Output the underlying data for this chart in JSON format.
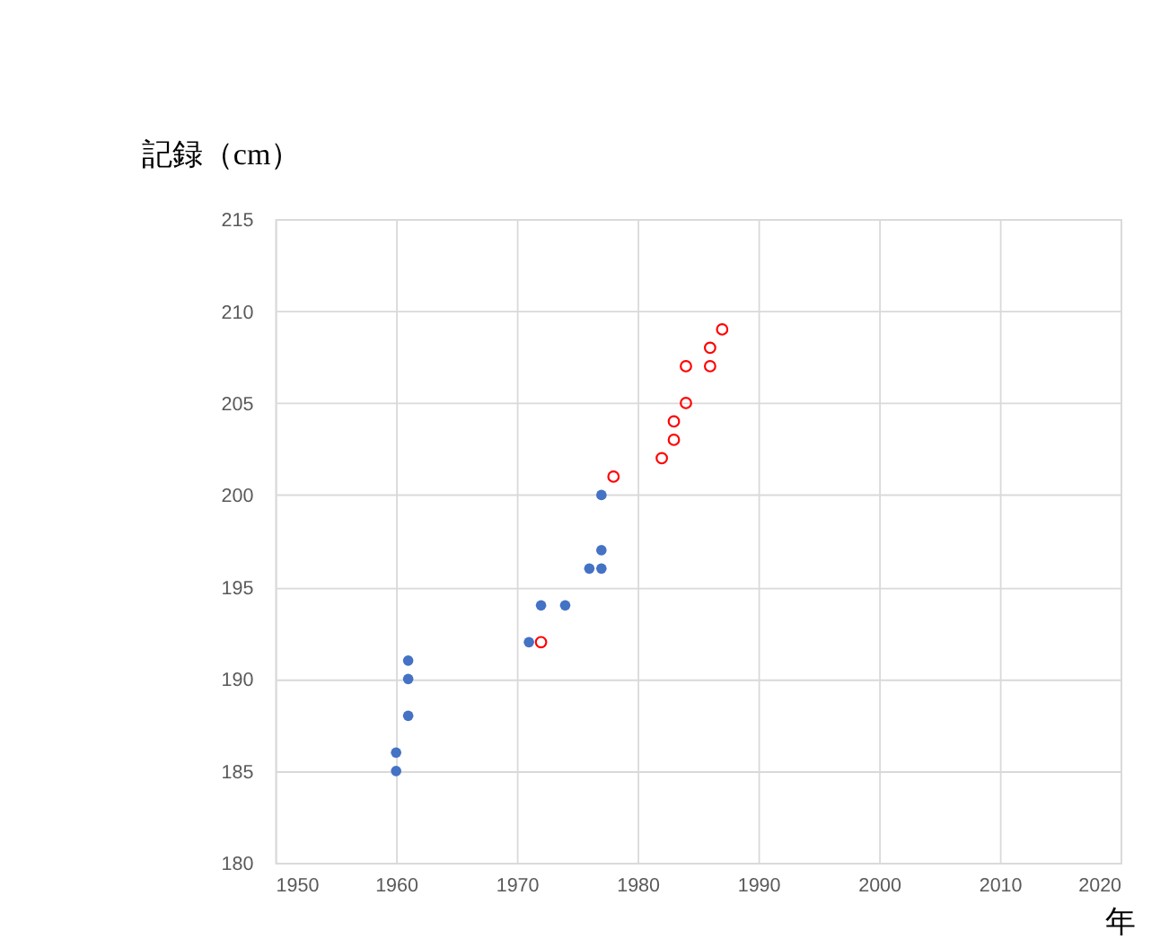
{
  "chart_data": {
    "type": "scatter",
    "xlabel": "年",
    "ylabel": "記録（cm）",
    "xlim": [
      1950,
      2020
    ],
    "xticks": [
      1950,
      1960,
      1970,
      1980,
      1990,
      2000,
      2010,
      2020
    ],
    "ylim": [
      180,
      215
    ],
    "yticks": [
      180,
      185,
      190,
      195,
      200,
      205,
      210,
      215
    ],
    "grid": true,
    "marker": "circle",
    "series": [
      {
        "color": "#4472c4",
        "x": [
          1960,
          1960,
          1961,
          1961,
          1961,
          1971,
          1972,
          1974,
          1976,
          1977,
          1977,
          1977
        ],
        "values": [
          185,
          186,
          188,
          190,
          191,
          192,
          194,
          194,
          196,
          196,
          197,
          200
        ]
      },
      {
        "color": "#ff0000",
        "x": [
          1972,
          1978,
          1982,
          1983,
          1983,
          1984,
          1984,
          1986,
          1986,
          1987
        ],
        "values": [
          192,
          201,
          202,
          203,
          204,
          205,
          207,
          207,
          208,
          209
        ]
      }
    ]
  }
}
